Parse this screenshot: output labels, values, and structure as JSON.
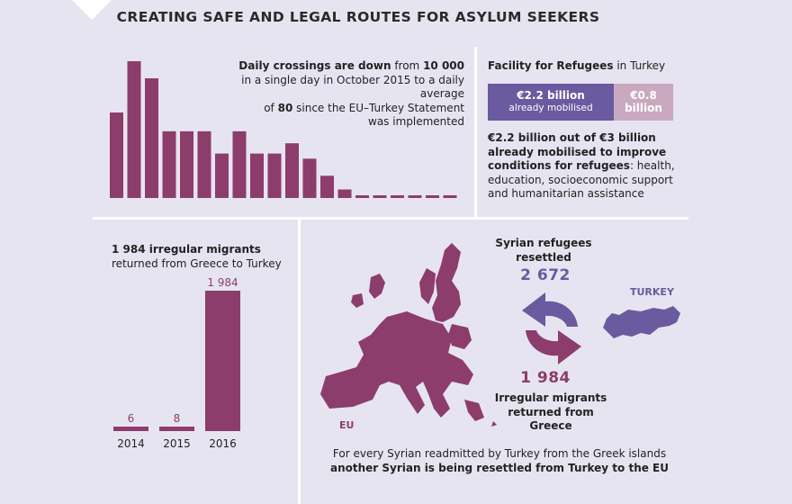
{
  "title": "CREATING SAFE AND LEGAL ROUTES FOR ASYLUM SEEKERS",
  "colors": {
    "background": "#e7e4f1",
    "bar": "#8c3d6b",
    "purple": "#6a5a9f",
    "light_pink": "#c9a9c0",
    "divider": "#ffffff"
  },
  "crossings": {
    "part1_bold": "Daily crossings are down",
    "part2": " from ",
    "part3_bold": "10 000",
    "line2": "in a single day in October 2015 to a daily average",
    "line3_pre": "of ",
    "line3_bold": "80",
    "line3_post": " since the EU–Turkey Statement",
    "line4": "was implemented"
  },
  "facility": {
    "title_bold": "Facility for Refugees",
    "title_rest": " in Turkey",
    "seg1_amount": "€2.2 billion",
    "seg1_sub": "already mobilised",
    "seg2_amount": "€0.8",
    "seg2_sub": "billion",
    "desc_bold": "€2.2 billion out of €3 billion already mobilised to improve conditions for refugees",
    "desc_rest": ": health, education, socioeconomic support and humanitarian assistance"
  },
  "returns": {
    "line1_bold": "1 984 irregular migrants",
    "line2": "returned from Greece to Turkey"
  },
  "resettled": {
    "label": "Syrian refugees resettled",
    "number": "2 672"
  },
  "returned": {
    "number": "1 984",
    "label": "Irregular migrants returned from Greece"
  },
  "turkey_label": "TURKEY",
  "eu_label": "EU",
  "bottom": {
    "line1": "For every Syrian readmitted by Turkey from the Greek islands",
    "line2_bold": "another Syrian is being resettled from Turkey to the EU"
  },
  "chart_data": [
    {
      "type": "bar",
      "values": [
        5000,
        8000,
        7000,
        3900,
        3900,
        3900,
        2600,
        3900,
        2600,
        2600,
        3200,
        2300,
        1300,
        500,
        80,
        80,
        80,
        80,
        80,
        80
      ],
      "ylim": [
        0,
        8000
      ]
    },
    {
      "type": "bar",
      "categories": [
        "2014",
        "2015",
        "2016"
      ],
      "values": [
        6,
        8,
        1984
      ],
      "value_labels": [
        "6",
        "8",
        "1 984"
      ],
      "ylim": [
        0,
        1984
      ]
    }
  ]
}
